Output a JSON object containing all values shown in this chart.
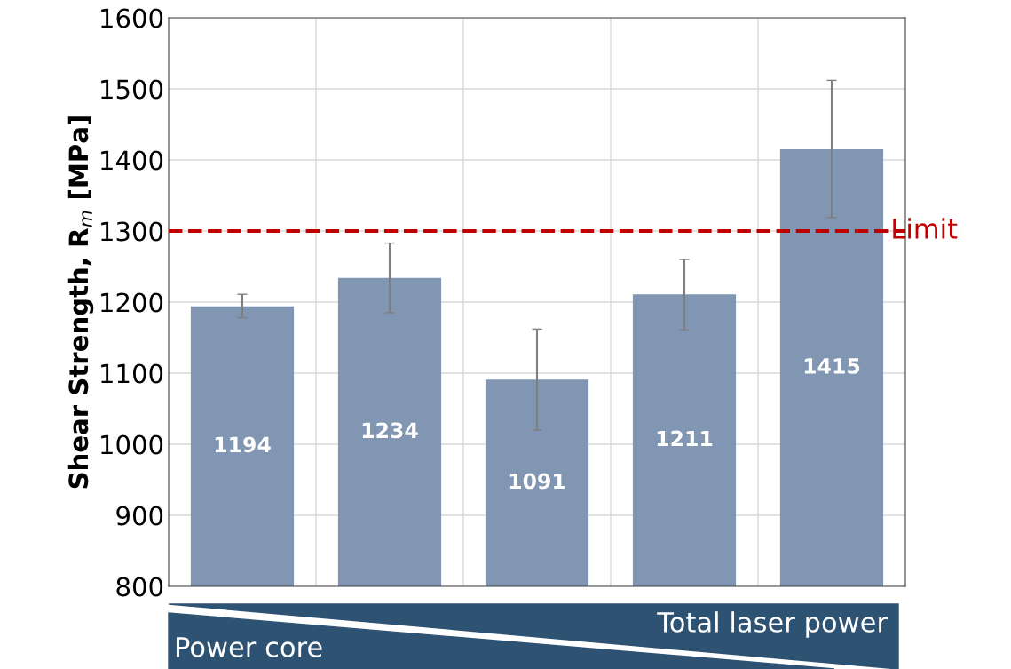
{
  "chart_data": {
    "type": "bar",
    "ylabel": "Shear Strength, R$_{m}$ [MPa]",
    "categories": [
      null,
      null,
      null,
      null,
      null
    ],
    "values": [
      1194,
      1234,
      1091,
      1211,
      1415
    ],
    "errors": [
      [
        1178,
        1211
      ],
      [
        1185,
        1283
      ],
      [
        1020,
        1162
      ],
      [
        1161,
        1260
      ],
      [
        1319,
        1512
      ]
    ],
    "color": "#8096b2",
    "data_labels": true,
    "ylim": [
      800,
      1600
    ],
    "yticks": [
      800,
      900,
      1000,
      1100,
      1200,
      1300,
      1400,
      1500,
      1600
    ],
    "grid": true,
    "ref_lines": [
      {
        "axis": "y",
        "value": 1300,
        "label": "Limit",
        "color": "#c00000",
        "line_style": "dashed"
      }
    ],
    "annotations": [
      "Total laser power",
      "Power core"
    ]
  }
}
